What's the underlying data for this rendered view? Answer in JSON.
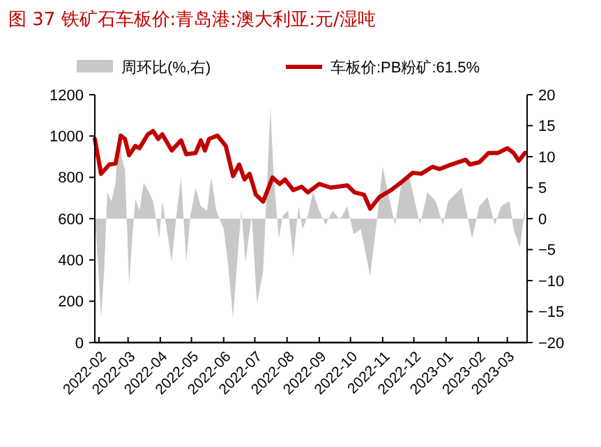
{
  "chart_data": {
    "type": "line",
    "title": "图 37 铁矿石车板价:青岛港:澳大利亚:元/湿吨",
    "xlim": [
      "2022-01-28",
      "2023-03-20"
    ],
    "xticks": [
      {
        "value": "2022-02-01",
        "label": "2022-02"
      },
      {
        "value": "2022-03-01",
        "label": "2022-03"
      },
      {
        "value": "2022-04-01",
        "label": "2022-04"
      },
      {
        "value": "2022-05-01",
        "label": "2022-05"
      },
      {
        "value": "2022-06-01",
        "label": "2022-06"
      },
      {
        "value": "2022-07-01",
        "label": "2022-07"
      },
      {
        "value": "2022-08-01",
        "label": "2022-08"
      },
      {
        "value": "2022-09-01",
        "label": "2022-09"
      },
      {
        "value": "2022-10-01",
        "label": "2022-10"
      },
      {
        "value": "2022-11-01",
        "label": "2022-11"
      },
      {
        "value": "2022-12-01",
        "label": "2022-12"
      },
      {
        "value": "2023-01-01",
        "label": "2023-01"
      },
      {
        "value": "2023-02-01",
        "label": "2023-02"
      },
      {
        "value": "2023-03-01",
        "label": "2023-03"
      }
    ],
    "ylim": [
      0,
      1200
    ],
    "yticks": [
      0,
      200,
      400,
      600,
      800,
      1000,
      1200
    ],
    "y2lim": [
      -20,
      20
    ],
    "y2ticks": [
      -20,
      -15,
      -10,
      -5,
      0,
      5,
      10,
      15,
      20
    ],
    "legend": "top",
    "series": [
      {
        "name": "周环比(%,右)",
        "type": "area",
        "axis": "y2",
        "color": "#c8c8c8",
        "x": [
          "2022-01-28",
          "2022-01-31",
          "2022-02-03",
          "2022-02-06",
          "2022-02-09",
          "2022-02-13",
          "2022-02-17",
          "2022-02-20",
          "2022-02-23",
          "2022-02-26",
          "2022-03-02",
          "2022-03-05",
          "2022-03-08",
          "2022-03-12",
          "2022-03-16",
          "2022-03-21",
          "2022-03-25",
          "2022-03-31",
          "2022-04-03",
          "2022-04-08",
          "2022-04-12",
          "2022-04-17",
          "2022-04-21",
          "2022-04-26",
          "2022-04-30",
          "2022-05-05",
          "2022-05-10",
          "2022-05-16",
          "2022-05-20",
          "2022-05-25",
          "2022-06-01",
          "2022-06-05",
          "2022-06-10",
          "2022-06-14",
          "2022-06-18",
          "2022-06-22",
          "2022-06-28",
          "2022-07-03",
          "2022-07-09",
          "2022-07-16",
          "2022-07-19",
          "2022-07-24",
          "2022-07-28",
          "2022-08-02",
          "2022-08-07",
          "2022-08-12",
          "2022-08-16",
          "2022-08-21",
          "2022-08-26",
          "2022-09-01",
          "2022-09-07",
          "2022-09-14",
          "2022-09-21",
          "2022-09-28",
          "2022-10-04",
          "2022-10-11",
          "2022-10-20",
          "2022-10-27",
          "2022-11-01",
          "2022-11-07",
          "2022-11-13",
          "2022-11-19",
          "2022-11-26",
          "2022-12-01",
          "2022-12-07",
          "2022-12-14",
          "2022-12-22",
          "2022-12-29",
          "2023-01-03",
          "2023-01-16",
          "2023-01-26",
          "2023-02-02",
          "2023-02-10",
          "2023-02-17",
          "2023-02-23",
          "2023-03-03",
          "2023-03-07",
          "2023-03-13",
          "2023-03-18"
        ],
        "values": [
          0,
          -7,
          -16,
          -8.5,
          4.3,
          2.8,
          5.8,
          14.8,
          9.6,
          8,
          -10.8,
          -3.2,
          3.2,
          1.3,
          5.8,
          4.3,
          2.8,
          -3.2,
          2.8,
          -2.5,
          -7,
          1.3,
          6.6,
          -7,
          0.5,
          5,
          2,
          1.3,
          6.6,
          1.3,
          -1.7,
          -7,
          -16,
          -7,
          1.3,
          -7,
          0.5,
          -13.8,
          -8.5,
          17.9,
          7.3,
          -3.2,
          0.5,
          1.3,
          -6.3,
          2,
          -1.7,
          0.5,
          4.3,
          1.3,
          -1,
          1.3,
          -0.2,
          2,
          -2.5,
          -1.7,
          -9.3,
          0.5,
          8.4,
          3.5,
          -1,
          5.8,
          7.3,
          3.5,
          -1,
          4.3,
          2.8,
          -1,
          2.8,
          5,
          -3.2,
          2,
          3.5,
          -1,
          2,
          2.8,
          -1.7,
          -4.7,
          1.7
        ]
      },
      {
        "name": "车板价:PB粉矿:61.5%",
        "type": "line",
        "color": "#c00000",
        "x": [
          "2022-01-28",
          "2022-02-03",
          "2022-02-11",
          "2022-02-17",
          "2022-02-22",
          "2022-02-26",
          "2022-03-02",
          "2022-03-08",
          "2022-03-12",
          "2022-03-20",
          "2022-03-25",
          "2022-03-30",
          "2022-04-03",
          "2022-04-12",
          "2022-04-21",
          "2022-04-26",
          "2022-05-05",
          "2022-05-10",
          "2022-05-14",
          "2022-05-18",
          "2022-05-26",
          "2022-06-03",
          "2022-06-10",
          "2022-06-16",
          "2022-06-21",
          "2022-06-26",
          "2022-07-02",
          "2022-07-09",
          "2022-07-18",
          "2022-07-25",
          "2022-07-30",
          "2022-08-07",
          "2022-08-15",
          "2022-08-21",
          "2022-09-01",
          "2022-09-12",
          "2022-09-28",
          "2022-10-05",
          "2022-10-14",
          "2022-10-20",
          "2022-10-29",
          "2022-11-09",
          "2022-11-18",
          "2022-11-30",
          "2022-12-08",
          "2022-12-19",
          "2022-12-26",
          "2023-01-06",
          "2023-01-20",
          "2023-01-24",
          "2023-02-02",
          "2023-02-11",
          "2023-02-20",
          "2023-03-01",
          "2023-03-07",
          "2023-03-12",
          "2023-03-18"
        ],
        "values": [
          986,
          817,
          862,
          867,
          1002,
          986,
          907,
          952,
          941,
          1008,
          1024,
          986,
          1008,
          930,
          979,
          912,
          918,
          979,
          930,
          986,
          1002,
          952,
          806,
          862,
          790,
          817,
          716,
          682,
          799,
          768,
          790,
          738,
          754,
          727,
          768,
          750,
          761,
          727,
          716,
          648,
          705,
          738,
          772,
          822,
          817,
          851,
          840,
          862,
          885,
          862,
          873,
          918,
          918,
          941,
          918,
          880,
          918
        ]
      }
    ]
  }
}
